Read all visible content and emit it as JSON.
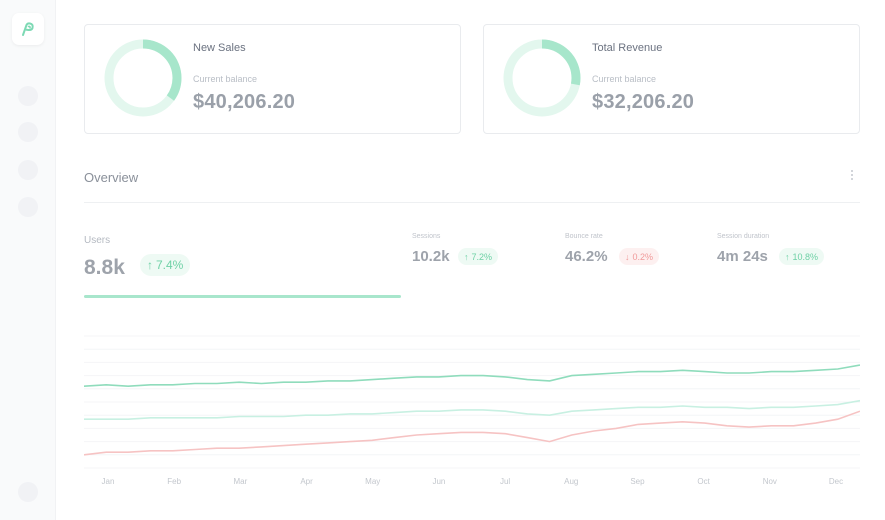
{
  "colors": {
    "accent_green": "#7dd9b4",
    "accent_green_light": "#d6f5e8",
    "accent_teal": "#bfeee0",
    "accent_red": "#f5b5b5"
  },
  "sidebar": {
    "logo_icon": "logo-icon",
    "items": [
      {
        "icon": "nav-icon"
      },
      {
        "icon": "nav-icon"
      },
      {
        "icon": "nav-icon"
      },
      {
        "icon": "nav-icon"
      },
      {
        "icon": "user-icon"
      }
    ]
  },
  "cards": [
    {
      "title": "New Sales",
      "sub": "Current balance",
      "amount": "$40,206.20",
      "progress": 0.35
    },
    {
      "title": "Total Revenue",
      "sub": "Current balance",
      "amount": "$32,206.20",
      "progress": 0.28
    }
  ],
  "overview": {
    "title": "Overview",
    "menu_icon": "more-vertical-icon",
    "users": {
      "label": "Users",
      "value": "8.8k",
      "change": "7.4%",
      "direction": "up"
    },
    "metrics": [
      {
        "label": "Sessions",
        "value": "10.2k",
        "change": "7.2%",
        "direction": "up"
      },
      {
        "label": "Bounce rate",
        "value": "46.2%",
        "change": "0.2%",
        "direction": "down"
      },
      {
        "label": "Session duration",
        "value": "4m 24s",
        "change": "10.8%",
        "direction": "up"
      }
    ]
  },
  "chart_data": {
    "type": "line",
    "categories": [
      "Jan",
      "Feb",
      "Mar",
      "Apr",
      "May",
      "Jun",
      "Jul",
      "Aug",
      "Sep",
      "Oct",
      "Nov",
      "Dec"
    ],
    "x": [
      0,
      1,
      2,
      3,
      4,
      5,
      6,
      7,
      8,
      9,
      10,
      11,
      12,
      13,
      14,
      15,
      16,
      17,
      18,
      19,
      20,
      21,
      22,
      23,
      24,
      25,
      26,
      27,
      28,
      29,
      30,
      31,
      32,
      33,
      34,
      35
    ],
    "ylim": [
      0,
      100
    ],
    "grid": true,
    "series": [
      {
        "color": "#8fdcbc",
        "values": [
          62,
          63,
          62,
          63,
          63,
          64,
          64,
          65,
          64,
          65,
          65,
          66,
          66,
          67,
          68,
          69,
          69,
          70,
          70,
          69,
          67,
          66,
          70,
          71,
          72,
          73,
          73,
          74,
          73,
          72,
          72,
          73,
          73,
          74,
          75,
          78
        ]
      },
      {
        "color": "#c8f0e2",
        "values": [
          37,
          37,
          37,
          38,
          38,
          38,
          38,
          39,
          39,
          39,
          40,
          40,
          41,
          41,
          42,
          43,
          43,
          44,
          44,
          43,
          41,
          40,
          43,
          44,
          45,
          46,
          46,
          47,
          46,
          46,
          45,
          46,
          46,
          47,
          48,
          51
        ]
      },
      {
        "color": "#f6c3c3",
        "values": [
          10,
          12,
          12,
          13,
          13,
          14,
          15,
          15,
          16,
          17,
          18,
          19,
          20,
          21,
          23,
          25,
          26,
          27,
          27,
          26,
          23,
          20,
          25,
          28,
          30,
          33,
          34,
          35,
          34,
          32,
          31,
          32,
          32,
          34,
          37,
          43
        ]
      }
    ]
  }
}
